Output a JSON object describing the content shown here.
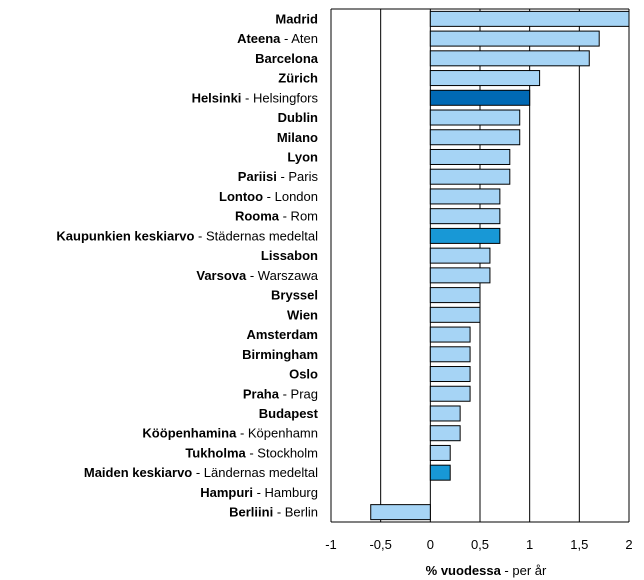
{
  "chart_data": {
    "type": "bar",
    "orientation": "horizontal",
    "categories": [
      {
        "bold": "Madrid",
        "rest": "",
        "value": 2.0,
        "highlight": "none"
      },
      {
        "bold": "Ateena",
        "rest": " - Aten",
        "value": 1.7,
        "highlight": "none"
      },
      {
        "bold": "Barcelona",
        "rest": "",
        "value": 1.6,
        "highlight": "none"
      },
      {
        "bold": "Zürich",
        "rest": "",
        "value": 1.1,
        "highlight": "none"
      },
      {
        "bold": "Helsinki",
        "rest": " - Helsingfors",
        "value": 1.0,
        "highlight": "dark"
      },
      {
        "bold": "Dublin",
        "rest": "",
        "value": 0.9,
        "highlight": "none"
      },
      {
        "bold": "Milano",
        "rest": "",
        "value": 0.9,
        "highlight": "none"
      },
      {
        "bold": "Lyon",
        "rest": "",
        "value": 0.8,
        "highlight": "none"
      },
      {
        "bold": "Pariisi",
        "rest": " - Paris",
        "value": 0.8,
        "highlight": "none"
      },
      {
        "bold": "Lontoo",
        "rest": " - London",
        "value": 0.7,
        "highlight": "none"
      },
      {
        "bold": "Rooma",
        "rest": " - Rom",
        "value": 0.7,
        "highlight": "none"
      },
      {
        "bold": "Kaupunkien keskiarvo",
        "rest": " - Städernas medeltal",
        "value": 0.7,
        "highlight": "medium"
      },
      {
        "bold": "Lissabon",
        "rest": "",
        "value": 0.6,
        "highlight": "none"
      },
      {
        "bold": "Varsova",
        "rest": " - Warszawa",
        "value": 0.6,
        "highlight": "none"
      },
      {
        "bold": "Bryssel",
        "rest": "",
        "value": 0.5,
        "highlight": "none"
      },
      {
        "bold": "Wien",
        "rest": "",
        "value": 0.5,
        "highlight": "none"
      },
      {
        "bold": "Amsterdam",
        "rest": "",
        "value": 0.4,
        "highlight": "none"
      },
      {
        "bold": "Birmingham",
        "rest": "",
        "value": 0.4,
        "highlight": "none"
      },
      {
        "bold": "Oslo",
        "rest": "",
        "value": 0.4,
        "highlight": "none"
      },
      {
        "bold": "Praha",
        "rest": " - Prag",
        "value": 0.4,
        "highlight": "none"
      },
      {
        "bold": "Budapest",
        "rest": "",
        "value": 0.3,
        "highlight": "none"
      },
      {
        "bold": "Kööpenhamina",
        "rest": " - Köpenhamn",
        "value": 0.3,
        "highlight": "none"
      },
      {
        "bold": "Tukholma",
        "rest": " - Stockholm",
        "value": 0.2,
        "highlight": "none"
      },
      {
        "bold": "Maiden keskiarvo",
        "rest": " - Ländernas medeltal",
        "value": 0.2,
        "highlight": "medium"
      },
      {
        "bold": "Hampuri",
        "rest": " - Hamburg",
        "value": 0.0,
        "highlight": "none"
      },
      {
        "bold": "Berliini",
        "rest": " - Berlin",
        "value": -0.6,
        "highlight": "none"
      }
    ],
    "xlim": [
      -1,
      2
    ],
    "xticks": [
      "-1",
      "-0,5",
      "0",
      "0,5",
      "1",
      "1,5",
      "2"
    ],
    "xlabel_bold": "% vuodessa",
    "xlabel_rest": " - per år",
    "grid": "vertical",
    "colors": {
      "bar": "#a6d4f5",
      "bar_dark": "#0069b4",
      "bar_medium": "#1898d6",
      "bar_stroke": "#000000",
      "grid": "#000000"
    }
  }
}
